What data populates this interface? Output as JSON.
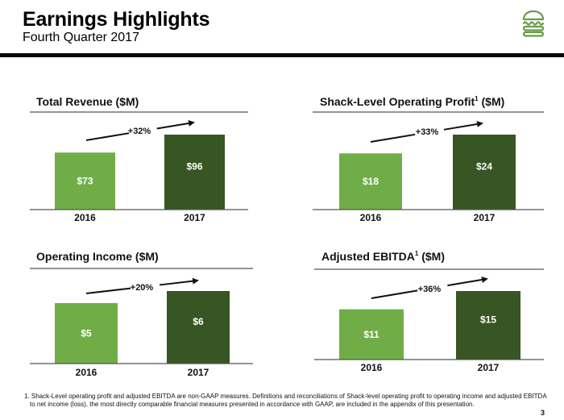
{
  "header": {
    "title": "Earnings Highlights",
    "subtitle": "Fourth Quarter 2017",
    "logo_icon": "burger-icon"
  },
  "colors": {
    "bar_2016": "#70ad47",
    "bar_2017": "#375623",
    "logo": "#6a9a4a",
    "rule": "#555555"
  },
  "chart_data": [
    {
      "type": "bar",
      "title": "Total Revenue ($M)",
      "title_superscript": "",
      "categories": [
        "2016",
        "2017"
      ],
      "values": [
        73,
        96
      ],
      "value_labels": [
        "$73",
        "$96"
      ],
      "growth_label": "+32%",
      "xlabel": "",
      "ylabel": "",
      "grid": false,
      "legend": "none"
    },
    {
      "type": "bar",
      "title": "Shack-Level Operating Profit",
      "title_superscript": "1",
      "title_suffix": " ($M)",
      "categories": [
        "2016",
        "2017"
      ],
      "values": [
        18,
        24
      ],
      "value_labels": [
        "$18",
        "$24"
      ],
      "growth_label": "+33%",
      "xlabel": "",
      "ylabel": "",
      "grid": false,
      "legend": "none"
    },
    {
      "type": "bar",
      "title": "Operating Income ($M)",
      "title_superscript": "",
      "categories": [
        "2016",
        "2017"
      ],
      "values": [
        5,
        6
      ],
      "value_labels": [
        "$5",
        "$6"
      ],
      "growth_label": "+20%",
      "xlabel": "",
      "ylabel": "",
      "grid": false,
      "legend": "none"
    },
    {
      "type": "bar",
      "title": "Adjusted EBITDA",
      "title_superscript": "1",
      "title_suffix": " ($M)",
      "categories": [
        "2016",
        "2017"
      ],
      "values": [
        11,
        15
      ],
      "value_labels": [
        "$11",
        "$15"
      ],
      "growth_label": "+36%",
      "xlabel": "",
      "ylabel": "",
      "grid": false,
      "legend": "none"
    }
  ],
  "footnote": {
    "line1": "1. Shack-Level operating profit and adjusted EBITDA are non-GAAP measures. Definitions and reconciliations of Shack-level operating profit to operating income and adjusted EBITDA",
    "line2": "to net income (loss), the most directly comparable financial measures presented in accordance with GAAP, are included in the appendix of this presentation."
  },
  "page_number": "3"
}
